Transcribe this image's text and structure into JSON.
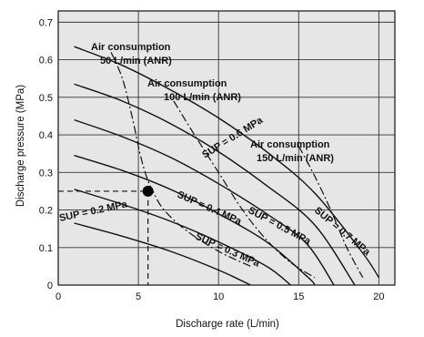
{
  "chart_data": {
    "type": "line",
    "xlabel": "Discharge rate (L/min)",
    "ylabel": "Discharge pressure (MPa)",
    "xlim": [
      0,
      21
    ],
    "ylim": [
      0,
      0.73
    ],
    "x_ticks": [
      "0",
      "5",
      "10",
      "15",
      "20"
    ],
    "y_ticks": [
      "0",
      "0.1",
      "0.2",
      "0.3",
      "0.4",
      "0.5",
      "0.6",
      "0.7"
    ],
    "grid": true,
    "background": "#e6e6e6",
    "series": [
      {
        "name": "SUP = 0.2 MPa",
        "label": "SUP = 0.2 MPa",
        "style": "solid",
        "points": [
          [
            1,
            0.165
          ],
          [
            4,
            0.13
          ],
          [
            7,
            0.09
          ],
          [
            10,
            0.04
          ],
          [
            12,
            0.0
          ]
        ]
      },
      {
        "name": "SUP = 0.3 MPa",
        "label": "SUP = 0.3 MPa",
        "style": "solid",
        "points": [
          [
            1,
            0.255
          ],
          [
            4,
            0.215
          ],
          [
            7,
            0.17
          ],
          [
            10,
            0.115
          ],
          [
            13,
            0.05
          ],
          [
            14.5,
            0.0
          ]
        ]
      },
      {
        "name": "SUP = 0.4 MPa",
        "label": "SUP = 0.4 MPa",
        "style": "solid",
        "points": [
          [
            1,
            0.345
          ],
          [
            4,
            0.305
          ],
          [
            7,
            0.255
          ],
          [
            10,
            0.19
          ],
          [
            13,
            0.115
          ],
          [
            15.6,
            0.02
          ],
          [
            16,
            0.0
          ]
        ]
      },
      {
        "name": "SUP = 0.5 MPa",
        "label": "SUP = 0.5 MPa",
        "style": "solid",
        "points": [
          [
            1,
            0.44
          ],
          [
            4,
            0.395
          ],
          [
            7,
            0.34
          ],
          [
            10,
            0.27
          ],
          [
            13,
            0.19
          ],
          [
            15.5,
            0.11
          ],
          [
            17.2,
            0.0
          ]
        ]
      },
      {
        "name": "SUP = 0.6 MPa",
        "label": "SUP = 0.6 MPa",
        "style": "solid",
        "points": [
          [
            1,
            0.535
          ],
          [
            4,
            0.49
          ],
          [
            7,
            0.43
          ],
          [
            10,
            0.355
          ],
          [
            13,
            0.265
          ],
          [
            16,
            0.16
          ],
          [
            18.5,
            0.0
          ]
        ]
      },
      {
        "name": "SUP = 0.7 MPa",
        "label": "SUP = 0.7 MPa",
        "style": "solid",
        "points": [
          [
            1,
            0.635
          ],
          [
            4,
            0.585
          ],
          [
            7,
            0.52
          ],
          [
            10,
            0.445
          ],
          [
            13,
            0.355
          ],
          [
            16,
            0.245
          ],
          [
            19,
            0.085
          ],
          [
            20,
            0.02
          ]
        ]
      },
      {
        "name": "Air consumption 50 L/min (ANR)",
        "style": "dashdot",
        "points": [
          [
            3.3,
            0.62
          ],
          [
            4.0,
            0.55
          ],
          [
            4.6,
            0.45
          ],
          [
            5.1,
            0.35
          ],
          [
            5.5,
            0.29
          ],
          [
            5.9,
            0.25
          ],
          [
            6.6,
            0.2
          ],
          [
            8.0,
            0.145
          ],
          [
            10.0,
            0.09
          ],
          [
            12.0,
            0.05
          ]
        ]
      },
      {
        "name": "Air consumption 100 L/min (ANR)",
        "style": "dashdot",
        "points": [
          [
            7.2,
            0.49
          ],
          [
            8.5,
            0.4
          ],
          [
            10.0,
            0.3
          ],
          [
            11.5,
            0.2
          ],
          [
            13.0,
            0.12
          ],
          [
            14.5,
            0.06
          ],
          [
            16.0,
            0.02
          ]
        ]
      },
      {
        "name": "Air consumption 150 L/min (ANR)",
        "style": "dashdot",
        "points": [
          [
            15.0,
            0.37
          ],
          [
            16.0,
            0.29
          ],
          [
            17.0,
            0.2
          ],
          [
            18.0,
            0.1
          ],
          [
            19.0,
            0.02
          ]
        ]
      }
    ],
    "operating_point": {
      "x": 5.6,
      "y": 0.25
    },
    "annotations": {
      "air50_line1": "Air consumption",
      "air50_line2": "50 L/min (ANR)",
      "air100_line1": "Air consumption",
      "air100_line2": "100 L/min (ANR)",
      "air150_line1": "Air consumption",
      "air150_line2": "150 L/min (ANR)",
      "sup02": "SUP = 0.2 MPa",
      "sup03": "SUP = 0.3 MPa",
      "sup04": "SUP = 0.4 MPa",
      "sup05": "SUP = 0.5 MPa",
      "sup06": "SUP = 0.6 MPa",
      "sup07": "SUP = 0.7 MPa"
    }
  }
}
